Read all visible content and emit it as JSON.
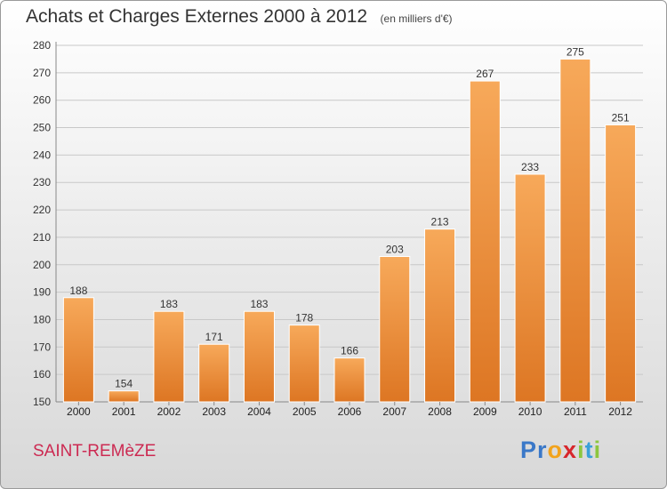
{
  "header": {
    "title": "Achats et Charges Externes 2000 à 2012",
    "subtitle": "(en milliers d'€)"
  },
  "location": "SAINT-REMèZE",
  "logo": {
    "text": "Proxiti",
    "letters": [
      {
        "ch": "P",
        "color": "#3a78c8"
      },
      {
        "ch": "r",
        "color": "#3a78c8"
      },
      {
        "ch": "o",
        "color": "#f2a31c"
      },
      {
        "ch": "x",
        "color": "#d7262b"
      },
      {
        "ch": "i",
        "color": "#8cc63e"
      },
      {
        "ch": "t",
        "color": "#3aa0d8"
      },
      {
        "ch": "i",
        "color": "#8cc63e"
      }
    ]
  },
  "colors": {
    "bar_top": "#f7a95a",
    "bar_bottom": "#dd7623",
    "grid": "#c8c8c8",
    "title": "#333333",
    "location": "#cc2a52"
  },
  "chart_data": {
    "type": "bar",
    "title": "Achats et Charges Externes 2000 à 2012",
    "subtitle": "(en milliers d'€)",
    "xlabel": "",
    "ylabel": "",
    "categories": [
      "2000",
      "2001",
      "2002",
      "2003",
      "2004",
      "2005",
      "2006",
      "2007",
      "2008",
      "2009",
      "2010",
      "2011",
      "2012"
    ],
    "values": [
      188,
      154,
      183,
      171,
      183,
      178,
      166,
      203,
      213,
      267,
      233,
      275,
      251
    ],
    "ylim": [
      150,
      280
    ],
    "yticks": [
      150,
      160,
      170,
      180,
      190,
      200,
      210,
      220,
      230,
      240,
      250,
      260,
      270,
      280
    ],
    "grid": true,
    "legend": "none"
  }
}
